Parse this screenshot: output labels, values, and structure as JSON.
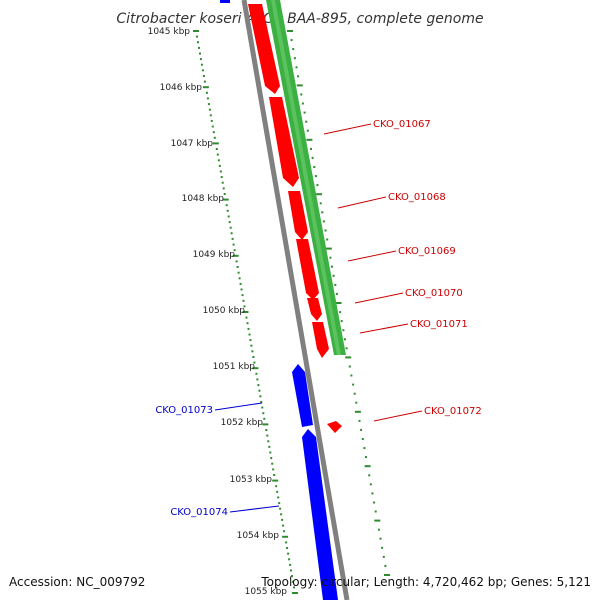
{
  "title": "Citrobacter koseri ATCC BAA-895, complete genome",
  "footer": {
    "accession": "Accession: NC_009792",
    "summary": "Topology: circular; Length: 4,720,462 bp; Genes: 5,121"
  },
  "colors": {
    "backbone": "#808080",
    "red_strand": "#ff0000",
    "blue_strand": "#0000ff",
    "green_track": "#3cb043",
    "ticks": "#2e8b2e"
  },
  "scale_labels": [
    "1045 kbp",
    "1046 kbp",
    "1047 kbp",
    "1048 kbp",
    "1049 kbp",
    "1050 kbp",
    "1051 kbp",
    "1052 kbp",
    "1053 kbp",
    "1054 kbp",
    "1055 kbp"
  ],
  "genes_right": [
    "CKO_01067",
    "CKO_01068",
    "CKO_01069",
    "CKO_01070",
    "CKO_01071",
    "CKO_01072"
  ],
  "genes_left": [
    "CKO_01073",
    "CKO_01074"
  ]
}
